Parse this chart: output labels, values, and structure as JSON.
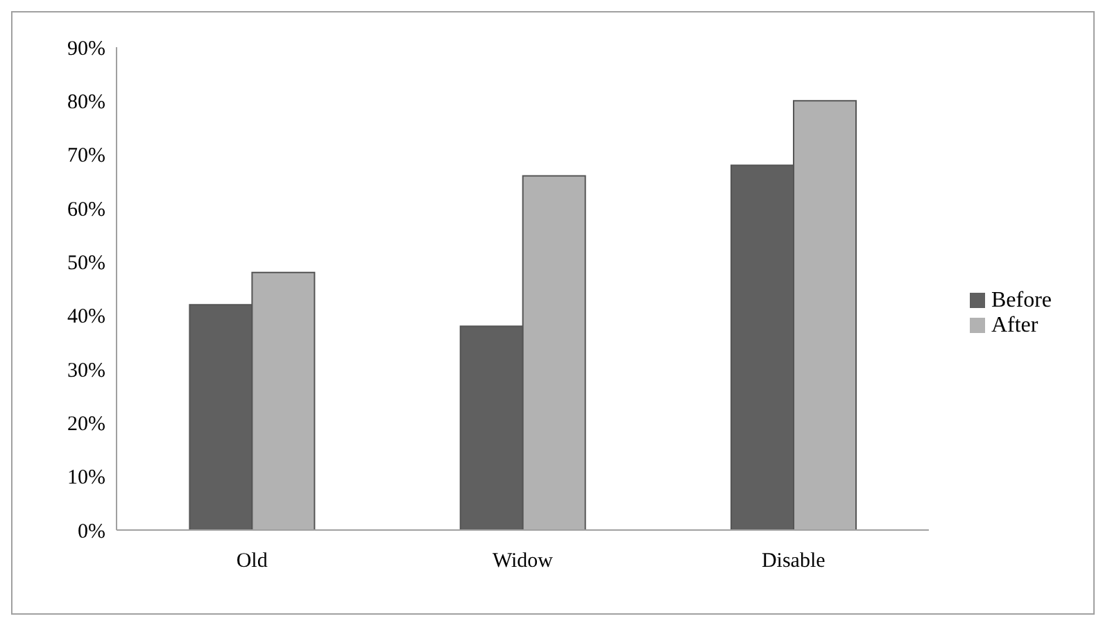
{
  "chart_data": {
    "type": "bar",
    "categories": [
      "Old",
      "Widow",
      "Disable"
    ],
    "series": [
      {
        "name": "Before",
        "color": "#606060",
        "values": [
          0.42,
          0.38,
          0.68
        ]
      },
      {
        "name": "After",
        "color": "#b2b2b2",
        "values": [
          0.48,
          0.66,
          0.8
        ]
      }
    ],
    "ylim": [
      0,
      0.9
    ],
    "yticks": [
      {
        "value": 0,
        "label": "0%"
      },
      {
        "value": 0.1,
        "label": "10%"
      },
      {
        "value": 0.2,
        "label": "20%"
      },
      {
        "value": 0.3,
        "label": "30%"
      },
      {
        "value": 0.4,
        "label": "40%"
      },
      {
        "value": 0.5,
        "label": "50%"
      },
      {
        "value": 0.6,
        "label": "60%"
      },
      {
        "value": 0.7,
        "label": "70%"
      },
      {
        "value": 0.8,
        "label": "80%"
      },
      {
        "value": 0.9,
        "label": "90%"
      }
    ],
    "grid": false,
    "legend": "right"
  }
}
